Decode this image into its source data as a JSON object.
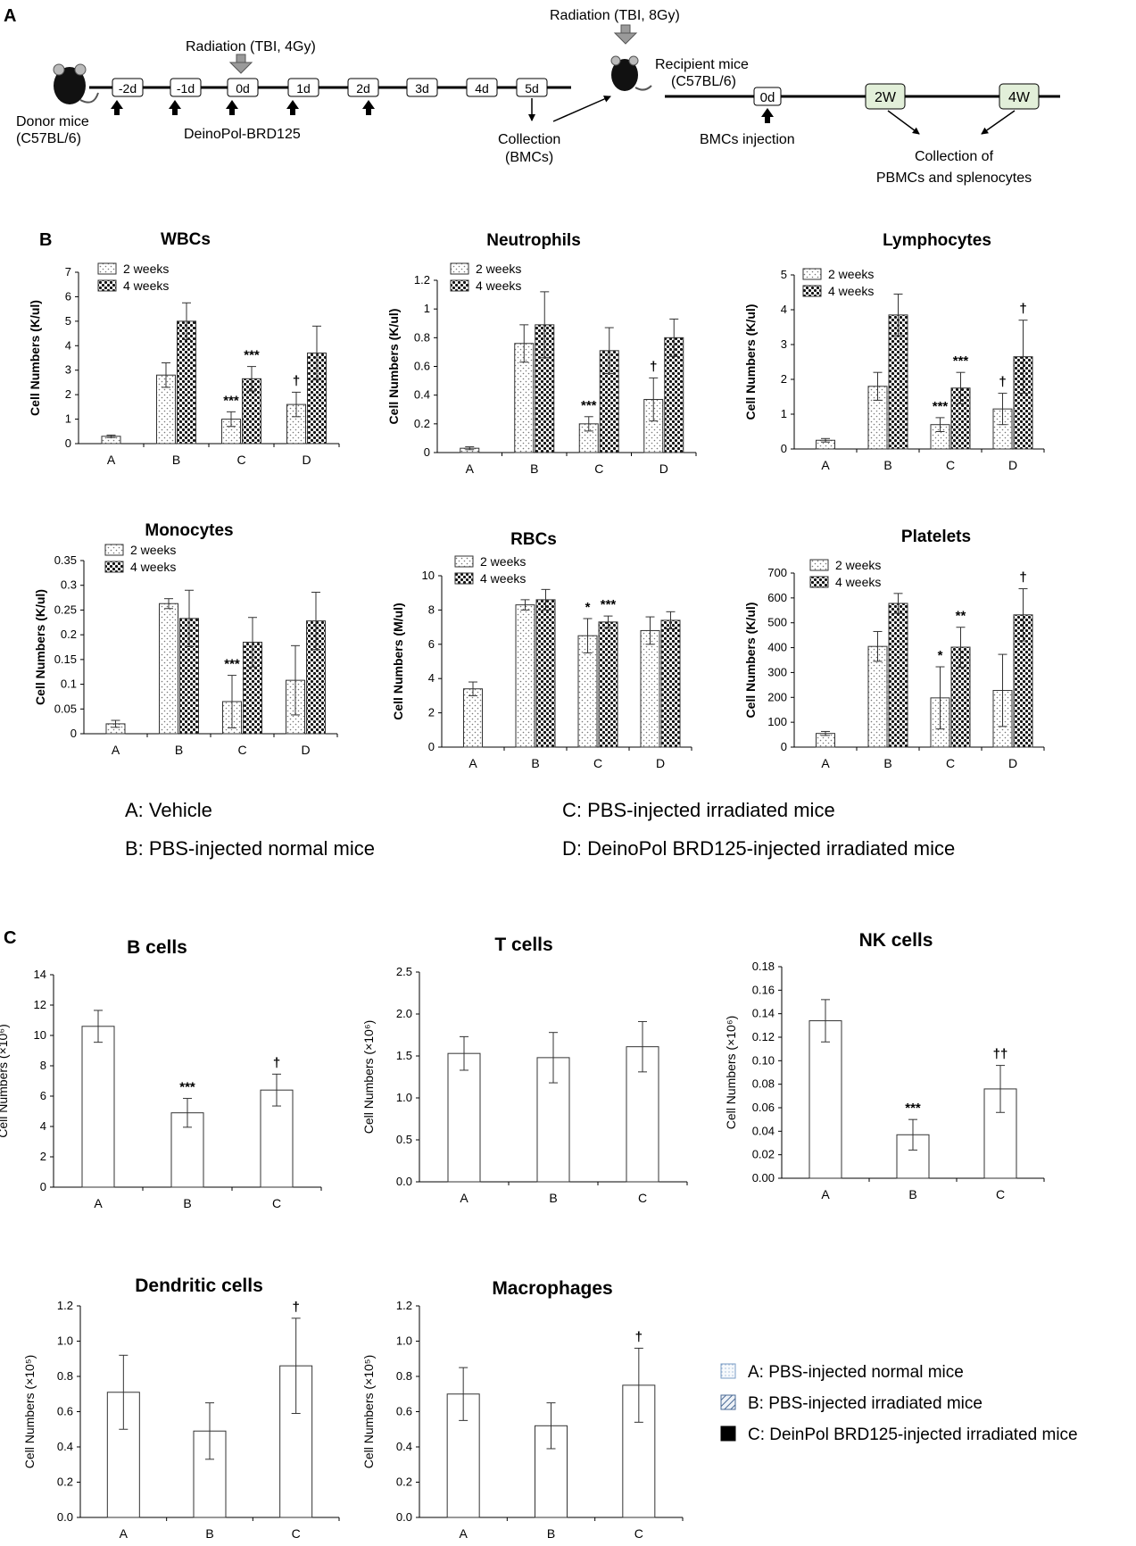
{
  "panels": {
    "a": "A",
    "b": "B",
    "c": "C"
  },
  "schema": {
    "donor": [
      "Donor mice",
      "(C57BL/6)"
    ],
    "radiation1": "Radiation (TBI, 4Gy)",
    "days1": [
      "-2d",
      "-1d",
      "0d",
      "1d",
      "2d",
      "3d",
      "4d",
      "5d"
    ],
    "treatment": "DeinoPol-BRD125",
    "collection": [
      "Collection",
      "(BMCs)"
    ],
    "radiation2": "Radiation (TBI, 8Gy)",
    "recipient": [
      "Recipient mice",
      "(C57BL/6)"
    ],
    "day0": "0d",
    "injection": "BMCs injection",
    "w2": "2W",
    "w4": "4W",
    "collect2": [
      "Collection of",
      "PBMCs and splenocytes"
    ]
  },
  "legend_b": [
    "A: Vehicle",
    "B: PBS-injected normal mice",
    "C: PBS-injected irradiated mice",
    "D: DeinoPol BRD125-injected irradiated mice"
  ],
  "legend_c": [
    "A: PBS-injected normal mice",
    "B: PBS-injected irradiated mice",
    "C: DeinPol BRD125-injected irradiated mice"
  ],
  "chart_data": [
    {
      "type": "bar",
      "title": "WBCs",
      "ylabel": "Cell Numbers (K/ul)",
      "ylim": [
        0,
        7
      ],
      "yticks": [
        "0",
        "1",
        "2",
        "3",
        "4",
        "5",
        "6",
        "7"
      ],
      "categories": [
        "A",
        "B",
        "C",
        "D"
      ],
      "legend": [
        "2 weeks",
        "4 weeks"
      ],
      "series": [
        {
          "name": "2 weeks",
          "values": [
            0.3,
            2.8,
            1.0,
            1.6
          ],
          "errors": [
            0.05,
            0.5,
            0.3,
            0.5
          ]
        },
        {
          "name": "4 weeks",
          "values": [
            null,
            5.0,
            2.65,
            3.7
          ],
          "errors": [
            null,
            0.75,
            0.5,
            1.1
          ]
        }
      ],
      "annotations": [
        {
          "cat": 2,
          "s": 0,
          "text": "***"
        },
        {
          "cat": 2,
          "s": 1,
          "text": "***"
        },
        {
          "cat": 3,
          "s": 0,
          "text": "†"
        }
      ]
    },
    {
      "type": "bar",
      "title": "Neutrophils",
      "ylabel": "Cell Numbers (K/ul)",
      "ylim": [
        0,
        1.2
      ],
      "yticks": [
        "0",
        "0.2",
        "0.4",
        "0.6",
        "0.8",
        "1",
        "1.2"
      ],
      "categories": [
        "A",
        "B",
        "C",
        "D"
      ],
      "legend": [
        "2 weeks",
        "4 weeks"
      ],
      "series": [
        {
          "name": "2 weeks",
          "values": [
            0.03,
            0.76,
            0.2,
            0.37
          ],
          "errors": [
            0.01,
            0.13,
            0.05,
            0.15
          ]
        },
        {
          "name": "4 weeks",
          "values": [
            null,
            0.89,
            0.71,
            0.8
          ],
          "errors": [
            null,
            0.23,
            0.16,
            0.13
          ]
        }
      ],
      "annotations": [
        {
          "cat": 2,
          "s": 0,
          "text": "***"
        },
        {
          "cat": 3,
          "s": 0,
          "text": "†"
        }
      ]
    },
    {
      "type": "bar",
      "title": "Lymphocytes",
      "ylabel": "Cell Numbers (K/ul)",
      "ylim": [
        0,
        5
      ],
      "yticks": [
        "0",
        "1",
        "2",
        "3",
        "4",
        "5"
      ],
      "categories": [
        "A",
        "B",
        "C",
        "D"
      ],
      "legend": [
        "2 weeks",
        "4 weeks"
      ],
      "series": [
        {
          "name": "2 weeks",
          "values": [
            0.25,
            1.8,
            0.7,
            1.15
          ],
          "errors": [
            0.05,
            0.4,
            0.2,
            0.45
          ]
        },
        {
          "name": "4 weeks",
          "values": [
            null,
            3.85,
            1.75,
            2.65
          ],
          "errors": [
            null,
            0.6,
            0.45,
            1.05
          ]
        }
      ],
      "annotations": [
        {
          "cat": 2,
          "s": 0,
          "text": "***"
        },
        {
          "cat": 2,
          "s": 1,
          "text": "***"
        },
        {
          "cat": 3,
          "s": 0,
          "text": "†"
        },
        {
          "cat": 3,
          "s": 1,
          "text": "†"
        }
      ]
    },
    {
      "type": "bar",
      "title": "Monocytes",
      "ylabel": "Cell Numbers (K/ul)",
      "ylim": [
        0,
        0.35
      ],
      "yticks": [
        "0",
        "0.05",
        "0.1",
        "0.15",
        "0.2",
        "0.25",
        "0.3",
        "0.35"
      ],
      "categories": [
        "A",
        "B",
        "C",
        "D"
      ],
      "legend": [
        "2 weeks",
        "4 weeks"
      ],
      "series": [
        {
          "name": "2 weeks",
          "values": [
            0.02,
            0.263,
            0.065,
            0.108
          ],
          "errors": [
            0.007,
            0.01,
            0.053,
            0.07
          ]
        },
        {
          "name": "4 weeks",
          "values": [
            null,
            0.233,
            0.185,
            0.228
          ],
          "errors": [
            null,
            0.057,
            0.05,
            0.058
          ]
        }
      ],
      "annotations": [
        {
          "cat": 2,
          "s": 0,
          "text": "***"
        }
      ]
    },
    {
      "type": "bar",
      "title": "RBCs",
      "ylabel": "Cell Numbers (M/ul)",
      "ylim": [
        0,
        10
      ],
      "yticks": [
        "0",
        "2",
        "4",
        "6",
        "8",
        "10"
      ],
      "categories": [
        "A",
        "B",
        "C",
        "D"
      ],
      "legend": [
        "2 weeks",
        "4 weeks"
      ],
      "series": [
        {
          "name": "2 weeks",
          "values": [
            3.4,
            8.3,
            6.5,
            6.8
          ],
          "errors": [
            0.4,
            0.3,
            1.0,
            0.8
          ]
        },
        {
          "name": "4 weeks",
          "values": [
            null,
            8.6,
            7.3,
            7.4
          ],
          "errors": [
            null,
            0.6,
            0.35,
            0.5
          ]
        }
      ],
      "annotations": [
        {
          "cat": 2,
          "s": 0,
          "text": "*"
        },
        {
          "cat": 2,
          "s": 1,
          "text": "***"
        }
      ]
    },
    {
      "type": "bar",
      "title": "Platelets",
      "ylabel": "Cell Numbers (K/ul)",
      "ylim": [
        0,
        700
      ],
      "yticks": [
        "0",
        "100",
        "200",
        "300",
        "400",
        "500",
        "600",
        "700"
      ],
      "categories": [
        "A",
        "B",
        "C",
        "D"
      ],
      "legend": [
        "2 weeks",
        "4 weeks"
      ],
      "series": [
        {
          "name": "2 weeks",
          "values": [
            55,
            405,
            198,
            228
          ],
          "errors": [
            8,
            60,
            125,
            145
          ]
        },
        {
          "name": "4 weeks",
          "values": [
            null,
            578,
            402,
            532
          ],
          "errors": [
            null,
            40,
            80,
            105
          ]
        }
      ],
      "annotations": [
        {
          "cat": 2,
          "s": 0,
          "text": "*"
        },
        {
          "cat": 2,
          "s": 1,
          "text": "**"
        },
        {
          "cat": 3,
          "s": 1,
          "text": "†"
        }
      ]
    },
    {
      "type": "bar",
      "title": "B cells",
      "ylabel": "Cell Numbers (×10⁶)",
      "ylim": [
        0,
        14
      ],
      "yticks": [
        "0",
        "2",
        "4",
        "6",
        "8",
        "10",
        "12",
        "14"
      ],
      "categories": [
        "A",
        "B",
        "C"
      ],
      "series": [
        {
          "name": "cells",
          "values": [
            10.6,
            4.9,
            6.4
          ],
          "errors": [
            1.05,
            0.95,
            1.05
          ]
        }
      ],
      "annotations": [
        {
          "cat": 1,
          "s": 0,
          "text": "***"
        },
        {
          "cat": 2,
          "s": 0,
          "text": "†"
        }
      ]
    },
    {
      "type": "bar",
      "title": "T cells",
      "ylabel": "Cell Numbers (×10⁶)",
      "ylim": [
        0,
        2.5
      ],
      "yticks": [
        "0.0",
        "0.5",
        "1.0",
        "1.5",
        "2.0",
        "2.5"
      ],
      "categories": [
        "A",
        "B",
        "C"
      ],
      "series": [
        {
          "name": "cells",
          "values": [
            1.53,
            1.48,
            1.61
          ],
          "errors": [
            0.2,
            0.3,
            0.3
          ]
        }
      ],
      "annotations": []
    },
    {
      "type": "bar",
      "title": "NK cells",
      "ylabel": "Cell Numbers (×10⁶)",
      "ylim": [
        0,
        0.18
      ],
      "yticks": [
        "0.00",
        "0.02",
        "0.04",
        "0.06",
        "0.08",
        "0.10",
        "0.12",
        "0.14",
        "0.16",
        "0.18"
      ],
      "categories": [
        "A",
        "B",
        "C"
      ],
      "series": [
        {
          "name": "cells",
          "values": [
            0.134,
            0.037,
            0.076
          ],
          "errors": [
            0.018,
            0.013,
            0.02
          ]
        }
      ],
      "annotations": [
        {
          "cat": 1,
          "s": 0,
          "text": "***"
        },
        {
          "cat": 2,
          "s": 0,
          "text": "††"
        }
      ]
    },
    {
      "type": "bar",
      "title": "Dendritic cells",
      "ylabel": "Cell Numbers (×10⁵)",
      "ylim": [
        0,
        1.2
      ],
      "yticks": [
        "0.0",
        "0.2",
        "0.4",
        "0.6",
        "0.8",
        "1.0",
        "1.2"
      ],
      "categories": [
        "A",
        "B",
        "C"
      ],
      "series": [
        {
          "name": "cells",
          "values": [
            0.71,
            0.49,
            0.86
          ],
          "errors": [
            0.21,
            0.16,
            0.27
          ]
        }
      ],
      "annotations": [
        {
          "cat": 2,
          "s": 0,
          "text": "†"
        }
      ]
    },
    {
      "type": "bar",
      "title": "Macrophages",
      "ylabel": "Cell Numbers (×10⁵)",
      "ylim": [
        0,
        1.2
      ],
      "yticks": [
        "0.0",
        "0.2",
        "0.4",
        "0.6",
        "0.8",
        "1.0",
        "1.2"
      ],
      "categories": [
        "A",
        "B",
        "C"
      ],
      "series": [
        {
          "name": "cells",
          "values": [
            0.7,
            0.52,
            0.75
          ],
          "errors": [
            0.15,
            0.13,
            0.21
          ]
        }
      ],
      "annotations": [
        {
          "cat": 2,
          "s": 0,
          "text": "†"
        }
      ]
    }
  ]
}
